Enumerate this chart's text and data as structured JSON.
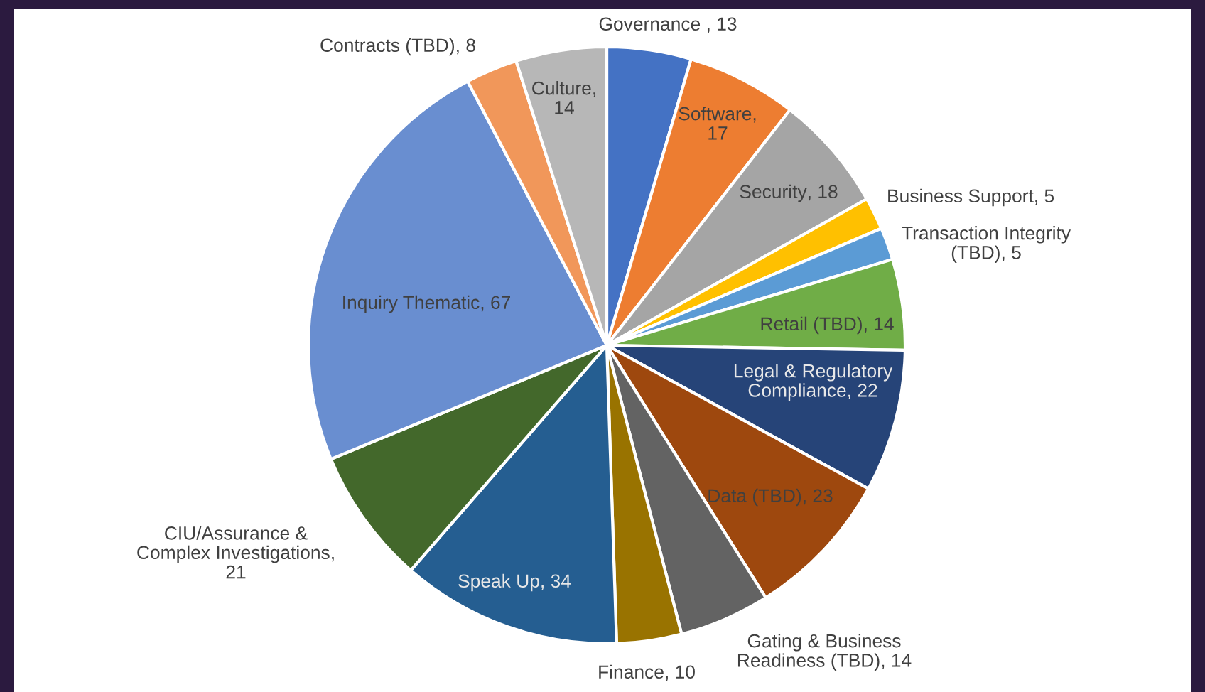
{
  "chart_data": {
    "type": "pie",
    "categories": [
      "Governance ",
      "Software",
      "Security",
      "Business Support",
      "Transaction Integrity\n(TBD)",
      "Retail (TBD)",
      "Legal & Regulatory\nCompliance",
      "Data (TBD)",
      "Gating & Business\nReadiness (TBD)",
      "Finance",
      "Speak Up",
      "CIU/Assurance &\nComplex Investigations",
      "Inquiry Thematic",
      "Contracts (TBD)",
      "Culture"
    ],
    "values": [
      13,
      17,
      18,
      5,
      5,
      14,
      22,
      23,
      14,
      10,
      34,
      21,
      67,
      8,
      14
    ],
    "value_labels": [
      ", 13",
      ",\n17",
      ", 18",
      ", 5",
      ", 5",
      ", 14",
      ", 22",
      ", 23",
      ", 14",
      ", 10",
      ", 34",
      ",\n21",
      ", 67",
      ", 8",
      ",\n14"
    ],
    "colors": [
      "#4472c4",
      "#ed7d31",
      "#a5a5a5",
      "#ffc000",
      "#5b9bd5",
      "#70ad47",
      "#264478",
      "#9e480e",
      "#636363",
      "#997300",
      "#255e91",
      "#43682b",
      "#698ed0",
      "#f1975a",
      "#b7b7b7"
    ],
    "legend": false
  }
}
